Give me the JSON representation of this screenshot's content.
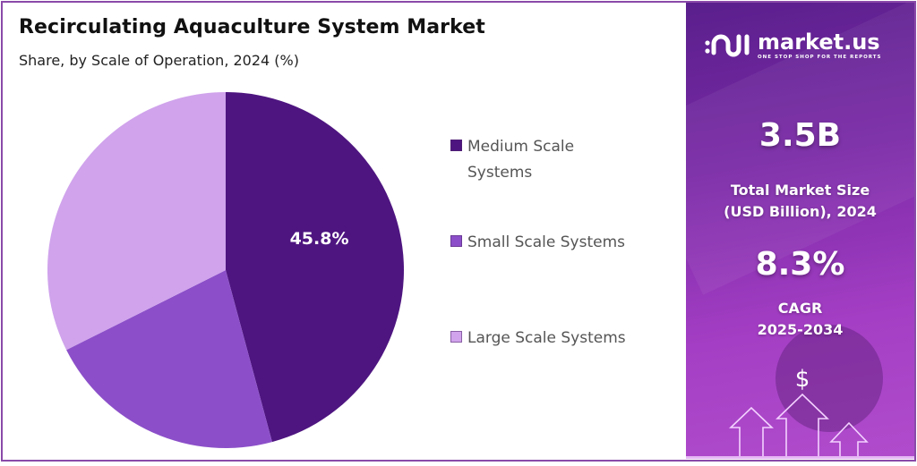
{
  "header": {
    "title": "Recirculating Aquaculture System Market",
    "subtitle": "Share, by Scale of Operation, 2024 (%)"
  },
  "chart_data": {
    "type": "pie",
    "title": "Recirculating Aquaculture System Market",
    "subtitle": "Share, by Scale of Operation, 2024 (%)",
    "categories": [
      "Medium Scale Systems",
      "Small Scale Systems",
      "Large Scale Systems"
    ],
    "values": [
      45.8,
      21.8,
      32.4
    ],
    "colors": [
      "#4e1580",
      "#8c4fc9",
      "#d0a3ec"
    ],
    "data_labels": [
      "45.8%",
      "",
      ""
    ],
    "start_angle": "12 o'clock, clockwise",
    "legend_position": "right"
  },
  "legend": {
    "items": [
      {
        "label": "Medium Scale Systems",
        "color": "#4e1580"
      },
      {
        "label": "Small Scale Systems",
        "color": "#8c4fc9"
      },
      {
        "label": "Large Scale Systems",
        "color": "#d0a3ec"
      }
    ]
  },
  "slice_labels": {
    "medium": "45.8%"
  },
  "panel": {
    "brand_name": "market.us",
    "brand_tagline": "ONE STOP SHOP FOR THE REPORTS",
    "market_size_value": "3.5B",
    "market_size_label_1": "Total Market Size",
    "market_size_label_2": "(USD Billion), 2024",
    "cagr_value": "8.3%",
    "cagr_label_1": "CAGR",
    "cagr_label_2": "2025-2034",
    "currency_symbol": "$"
  },
  "colors": {
    "frame": "#8a4aa8",
    "panel_dark": "#5a1f8c",
    "panel_light": "#b04ccc"
  }
}
